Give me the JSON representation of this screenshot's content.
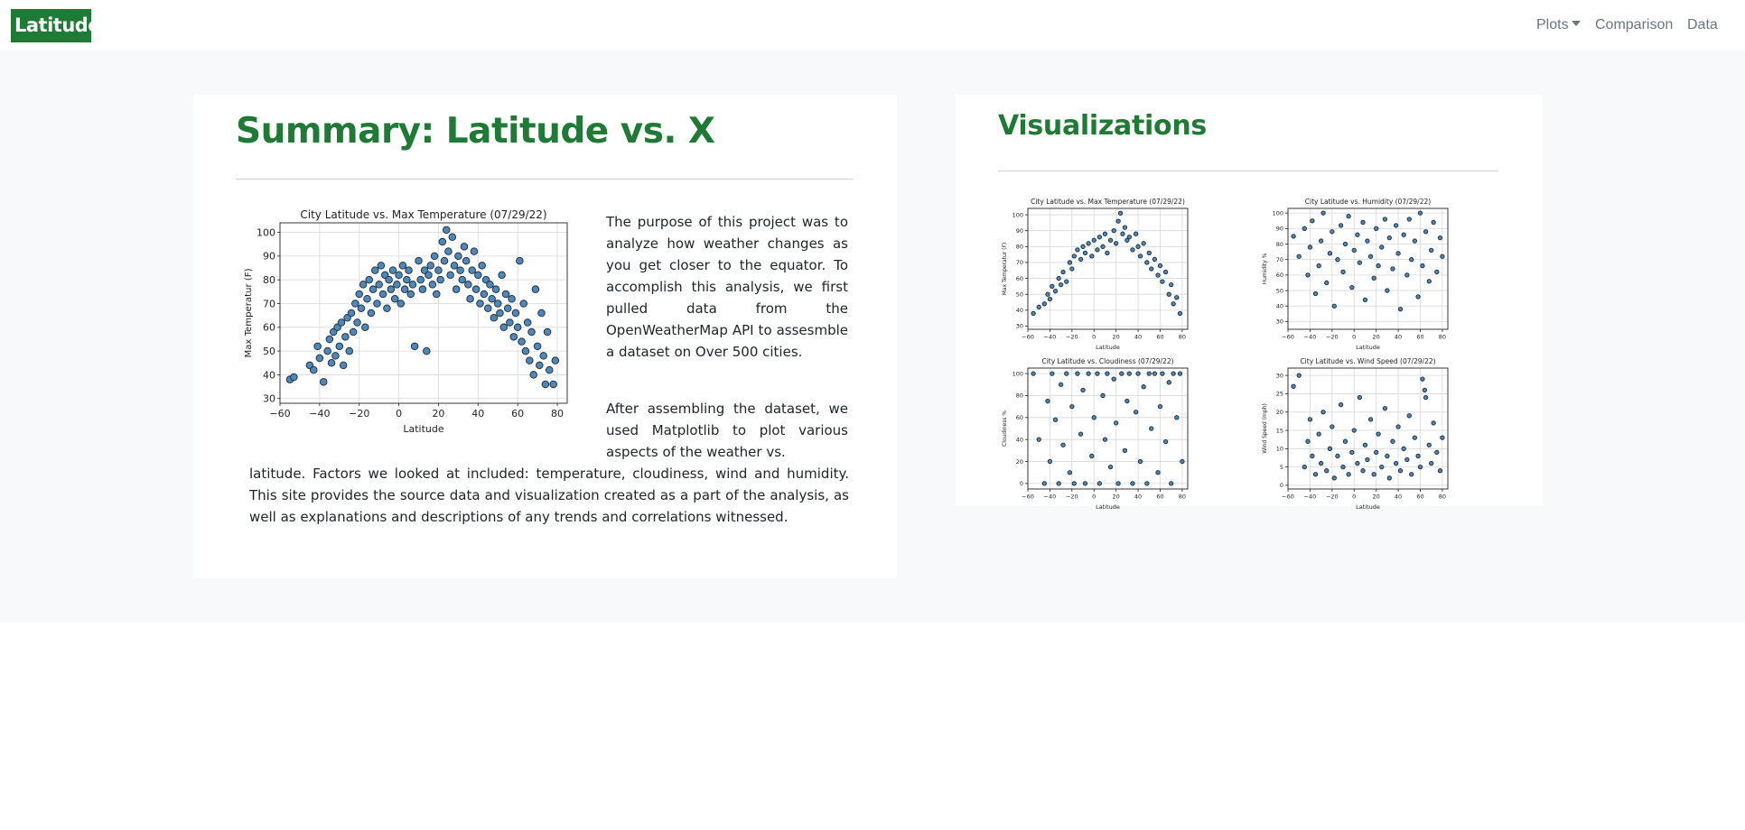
{
  "navbar": {
    "brand": "Latitude",
    "plots_label": "Plots",
    "comparison_label": "Comparison",
    "data_label": "Data"
  },
  "summary": {
    "title": "Summary: Latitude vs. X",
    "paragraph1": "The purpose of this project was to analyze how weather changes as you get closer to the equator. To accomplish this analysis, we first pulled data from the OpenWeatherMap API to assesmble a dataset on Over 500 cities.",
    "paragraph2_part1": "After assembling the dataset, we used Matplotlib to plot various aspects of the weather vs.",
    "paragraph2_part2": "latitude. Factors we looked at included: temperature, cloudiness, wind and humidity. This site provides the source data and visualization created as a part of the analysis, as well as explanations and descriptions of any trends and correlations witnessed."
  },
  "visualizations": {
    "title": "Visualizations"
  },
  "colors": {
    "brand": "#1e7a34",
    "point_fill": "#4f87b8",
    "point_edge": "#1b2b3a"
  },
  "chart_data": [
    {
      "id": "main",
      "type": "scatter",
      "title": "City Latitude vs. Max Temperature (07/29/22)",
      "xlabel": "Latitude",
      "ylabel": "Max Temperatur (F)",
      "xlim": [
        -60,
        85
      ],
      "ylim": [
        28,
        104
      ],
      "xticks": [
        -60,
        -40,
        -20,
        0,
        20,
        40,
        60,
        80
      ],
      "yticks": [
        30,
        40,
        50,
        60,
        70,
        80,
        90,
        100
      ],
      "grid": true,
      "points": [
        [
          -55,
          38
        ],
        [
          -53,
          39
        ],
        [
          -45,
          44
        ],
        [
          -43,
          42
        ],
        [
          -41,
          52
        ],
        [
          -40,
          47
        ],
        [
          -38,
          37
        ],
        [
          -36,
          50
        ],
        [
          -35,
          55
        ],
        [
          -34,
          45
        ],
        [
          -33,
          58
        ],
        [
          -32,
          48
        ],
        [
          -31,
          60
        ],
        [
          -30,
          52
        ],
        [
          -29,
          62
        ],
        [
          -28,
          44
        ],
        [
          -27,
          56
        ],
        [
          -26,
          64
        ],
        [
          -25,
          50
        ],
        [
          -24,
          66
        ],
        [
          -23,
          58
        ],
        [
          -22,
          70
        ],
        [
          -21,
          62
        ],
        [
          -20,
          74
        ],
        [
          -19,
          68
        ],
        [
          -18,
          78
        ],
        [
          -17,
          60
        ],
        [
          -16,
          72
        ],
        [
          -15,
          80
        ],
        [
          -14,
          66
        ],
        [
          -13,
          76
        ],
        [
          -12,
          84
        ],
        [
          -11,
          70
        ],
        [
          -10,
          78
        ],
        [
          -9,
          86
        ],
        [
          -8,
          74
        ],
        [
          -7,
          82
        ],
        [
          -6,
          68
        ],
        [
          -5,
          80
        ],
        [
          -4,
          76
        ],
        [
          -3,
          84
        ],
        [
          -2,
          72
        ],
        [
          -1,
          78
        ],
        [
          0,
          82
        ],
        [
          1,
          70
        ],
        [
          2,
          86
        ],
        [
          3,
          76
        ],
        [
          4,
          80
        ],
        [
          5,
          84
        ],
        [
          6,
          74
        ],
        [
          7,
          78
        ],
        [
          8,
          52
        ],
        [
          10,
          88
        ],
        [
          11,
          80
        ],
        [
          12,
          76
        ],
        [
          13,
          84
        ],
        [
          14,
          50
        ],
        [
          15,
          82
        ],
        [
          16,
          86
        ],
        [
          17,
          78
        ],
        [
          18,
          90
        ],
        [
          19,
          74
        ],
        [
          20,
          84
        ],
        [
          21,
          80
        ],
        [
          22,
          96
        ],
        [
          23,
          88
        ],
        [
          24,
          101
        ],
        [
          25,
          92
        ],
        [
          26,
          82
        ],
        [
          27,
          98
        ],
        [
          28,
          86
        ],
        [
          29,
          76
        ],
        [
          30,
          90
        ],
        [
          31,
          84
        ],
        [
          32,
          80
        ],
        [
          33,
          94
        ],
        [
          34,
          88
        ],
        [
          35,
          78
        ],
        [
          36,
          72
        ],
        [
          37,
          84
        ],
        [
          38,
          92
        ],
        [
          39,
          76
        ],
        [
          40,
          82
        ],
        [
          41,
          70
        ],
        [
          42,
          86
        ],
        [
          43,
          74
        ],
        [
          44,
          80
        ],
        [
          45,
          68
        ],
        [
          46,
          78
        ],
        [
          47,
          72
        ],
        [
          48,
          64
        ],
        [
          49,
          76
        ],
        [
          50,
          70
        ],
        [
          51,
          66
        ],
        [
          52,
          82
        ],
        [
          53,
          60
        ],
        [
          54,
          74
        ],
        [
          55,
          68
        ],
        [
          56,
          62
        ],
        [
          57,
          72
        ],
        [
          58,
          56
        ],
        [
          59,
          66
        ],
        [
          60,
          60
        ],
        [
          61,
          88
        ],
        [
          62,
          54
        ],
        [
          63,
          70
        ],
        [
          64,
          50
        ],
        [
          65,
          62
        ],
        [
          66,
          46
        ],
        [
          67,
          58
        ],
        [
          68,
          40
        ],
        [
          69,
          76
        ],
        [
          70,
          52
        ],
        [
          71,
          44
        ],
        [
          72,
          66
        ],
        [
          73,
          48
        ],
        [
          74,
          36
        ],
        [
          75,
          58
        ],
        [
          76,
          42
        ],
        [
          78,
          36
        ],
        [
          79,
          46
        ]
      ]
    },
    {
      "id": "temp_thumb",
      "type": "scatter",
      "title": "City Latitude vs. Max Temperature (07/29/22)",
      "xlabel": "Latitude",
      "ylabel": "Max Temperatur (F)",
      "xlim": [
        -60,
        85
      ],
      "ylim": [
        28,
        104
      ],
      "xticks": [
        -60,
        -40,
        -20,
        0,
        20,
        40,
        60,
        80
      ],
      "yticks": [
        30,
        40,
        50,
        60,
        70,
        80,
        90,
        100
      ],
      "grid": true,
      "points": [
        [
          -55,
          38
        ],
        [
          -50,
          42
        ],
        [
          -45,
          44
        ],
        [
          -42,
          50
        ],
        [
          -40,
          47
        ],
        [
          -38,
          55
        ],
        [
          -35,
          52
        ],
        [
          -32,
          60
        ],
        [
          -30,
          56
        ],
        [
          -28,
          64
        ],
        [
          -25,
          58
        ],
        [
          -22,
          70
        ],
        [
          -20,
          66
        ],
        [
          -18,
          74
        ],
        [
          -15,
          78
        ],
        [
          -12,
          72
        ],
        [
          -10,
          80
        ],
        [
          -8,
          76
        ],
        [
          -5,
          82
        ],
        [
          -2,
          74
        ],
        [
          0,
          84
        ],
        [
          3,
          78
        ],
        [
          5,
          86
        ],
        [
          8,
          80
        ],
        [
          10,
          88
        ],
        [
          12,
          76
        ],
        [
          15,
          84
        ],
        [
          18,
          90
        ],
        [
          20,
          82
        ],
        [
          22,
          96
        ],
        [
          24,
          101
        ],
        [
          26,
          88
        ],
        [
          28,
          92
        ],
        [
          30,
          84
        ],
        [
          32,
          86
        ],
        [
          35,
          78
        ],
        [
          38,
          88
        ],
        [
          40,
          80
        ],
        [
          42,
          74
        ],
        [
          45,
          82
        ],
        [
          48,
          70
        ],
        [
          50,
          76
        ],
        [
          52,
          66
        ],
        [
          55,
          72
        ],
        [
          58,
          62
        ],
        [
          60,
          68
        ],
        [
          62,
          58
        ],
        [
          65,
          64
        ],
        [
          68,
          50
        ],
        [
          70,
          56
        ],
        [
          72,
          44
        ],
        [
          75,
          48
        ],
        [
          78,
          38
        ]
      ]
    },
    {
      "id": "humidity_thumb",
      "type": "scatter",
      "title": "City Latitude vs. Humidity (07/29/22)",
      "xlabel": "Latitude",
      "ylabel": "Humidity %",
      "xlim": [
        -60,
        85
      ],
      "ylim": [
        25,
        103
      ],
      "xticks": [
        -60,
        -40,
        -20,
        0,
        20,
        40,
        60,
        80
      ],
      "yticks": [
        30,
        40,
        50,
        60,
        70,
        80,
        90,
        100
      ],
      "grid": true,
      "points": [
        [
          -55,
          85
        ],
        [
          -50,
          72
        ],
        [
          -45,
          90
        ],
        [
          -42,
          60
        ],
        [
          -40,
          78
        ],
        [
          -38,
          95
        ],
        [
          -35,
          48
        ],
        [
          -32,
          66
        ],
        [
          -30,
          82
        ],
        [
          -28,
          100
        ],
        [
          -25,
          55
        ],
        [
          -22,
          74
        ],
        [
          -20,
          88
        ],
        [
          -18,
          40
        ],
        [
          -15,
          70
        ],
        [
          -12,
          92
        ],
        [
          -10,
          62
        ],
        [
          -8,
          80
        ],
        [
          -5,
          98
        ],
        [
          -2,
          52
        ],
        [
          0,
          76
        ],
        [
          3,
          86
        ],
        [
          5,
          68
        ],
        [
          8,
          94
        ],
        [
          10,
          44
        ],
        [
          12,
          82
        ],
        [
          15,
          72
        ],
        [
          18,
          58
        ],
        [
          20,
          90
        ],
        [
          22,
          66
        ],
        [
          25,
          78
        ],
        [
          28,
          96
        ],
        [
          30,
          50
        ],
        [
          32,
          84
        ],
        [
          35,
          64
        ],
        [
          38,
          92
        ],
        [
          40,
          74
        ],
        [
          42,
          38
        ],
        [
          45,
          86
        ],
        [
          48,
          60
        ],
        [
          50,
          96
        ],
        [
          52,
          70
        ],
        [
          55,
          82
        ],
        [
          58,
          46
        ],
        [
          60,
          100
        ],
        [
          62,
          66
        ],
        [
          65,
          88
        ],
        [
          68,
          56
        ],
        [
          70,
          76
        ],
        [
          72,
          94
        ],
        [
          75,
          62
        ],
        [
          78,
          84
        ],
        [
          80,
          72
        ]
      ]
    },
    {
      "id": "cloudiness_thumb",
      "type": "scatter",
      "title": "City Latitude vs. Cloudiness (07/29/22)",
      "xlabel": "Latitude",
      "ylabel": "Cloudiness %",
      "xlim": [
        -60,
        85
      ],
      "ylim": [
        -5,
        105
      ],
      "xticks": [
        -60,
        -40,
        -20,
        0,
        20,
        40,
        60,
        80
      ],
      "yticks": [
        0,
        20,
        40,
        60,
        80,
        100
      ],
      "grid": true,
      "points": [
        [
          -55,
          100
        ],
        [
          -50,
          40
        ],
        [
          -45,
          0
        ],
        [
          -42,
          75
        ],
        [
          -40,
          20
        ],
        [
          -38,
          100
        ],
        [
          -35,
          58
        ],
        [
          -32,
          0
        ],
        [
          -30,
          90
        ],
        [
          -28,
          35
        ],
        [
          -25,
          100
        ],
        [
          -22,
          10
        ],
        [
          -20,
          70
        ],
        [
          -18,
          0
        ],
        [
          -15,
          100
        ],
        [
          -12,
          45
        ],
        [
          -10,
          85
        ],
        [
          -8,
          0
        ],
        [
          -5,
          100
        ],
        [
          -2,
          25
        ],
        [
          0,
          60
        ],
        [
          3,
          100
        ],
        [
          5,
          0
        ],
        [
          8,
          80
        ],
        [
          10,
          40
        ],
        [
          12,
          100
        ],
        [
          15,
          15
        ],
        [
          18,
          95
        ],
        [
          20,
          55
        ],
        [
          22,
          0
        ],
        [
          25,
          100
        ],
        [
          28,
          30
        ],
        [
          30,
          75
        ],
        [
          32,
          100
        ],
        [
          35,
          0
        ],
        [
          38,
          65
        ],
        [
          40,
          100
        ],
        [
          42,
          20
        ],
        [
          45,
          88
        ],
        [
          48,
          0
        ],
        [
          50,
          100
        ],
        [
          52,
          50
        ],
        [
          55,
          100
        ],
        [
          58,
          10
        ],
        [
          60,
          70
        ],
        [
          62,
          100
        ],
        [
          65,
          38
        ],
        [
          68,
          92
        ],
        [
          70,
          0
        ],
        [
          72,
          100
        ],
        [
          75,
          60
        ],
        [
          78,
          100
        ],
        [
          80,
          20
        ]
      ]
    },
    {
      "id": "wind_thumb",
      "type": "scatter",
      "title": "City Latitude vs. Wind Speed (07/29/22)",
      "xlabel": "Latitude",
      "ylabel": "Wind Speed (mph)",
      "xlim": [
        -60,
        85
      ],
      "ylim": [
        -1,
        32
      ],
      "xticks": [
        -60,
        -40,
        -20,
        0,
        20,
        40,
        60,
        80
      ],
      "yticks": [
        0,
        5,
        10,
        15,
        20,
        25,
        30
      ],
      "grid": true,
      "points": [
        [
          -55,
          27
        ],
        [
          -50,
          30
        ],
        [
          -45,
          5
        ],
        [
          -42,
          12
        ],
        [
          -40,
          18
        ],
        [
          -38,
          8
        ],
        [
          -35,
          3
        ],
        [
          -32,
          14
        ],
        [
          -30,
          6
        ],
        [
          -28,
          20
        ],
        [
          -25,
          4
        ],
        [
          -22,
          10
        ],
        [
          -20,
          16
        ],
        [
          -18,
          2
        ],
        [
          -15,
          8
        ],
        [
          -12,
          22
        ],
        [
          -10,
          5
        ],
        [
          -8,
          12
        ],
        [
          -5,
          3
        ],
        [
          -2,
          9
        ],
        [
          0,
          15
        ],
        [
          3,
          6
        ],
        [
          5,
          24
        ],
        [
          8,
          4
        ],
        [
          10,
          11
        ],
        [
          12,
          7
        ],
        [
          15,
          18
        ],
        [
          18,
          3
        ],
        [
          20,
          9
        ],
        [
          22,
          14
        ],
        [
          25,
          5
        ],
        [
          28,
          21
        ],
        [
          30,
          8
        ],
        [
          32,
          2
        ],
        [
          35,
          12
        ],
        [
          38,
          6
        ],
        [
          40,
          16
        ],
        [
          42,
          4
        ],
        [
          45,
          10
        ],
        [
          48,
          7
        ],
        [
          50,
          19
        ],
        [
          52,
          3
        ],
        [
          55,
          13
        ],
        [
          58,
          8
        ],
        [
          60,
          5
        ],
        [
          62,
          29
        ],
        [
          64,
          26
        ],
        [
          65,
          24
        ],
        [
          68,
          11
        ],
        [
          70,
          6
        ],
        [
          72,
          17
        ],
        [
          75,
          9
        ],
        [
          78,
          4
        ],
        [
          80,
          13
        ]
      ]
    }
  ]
}
